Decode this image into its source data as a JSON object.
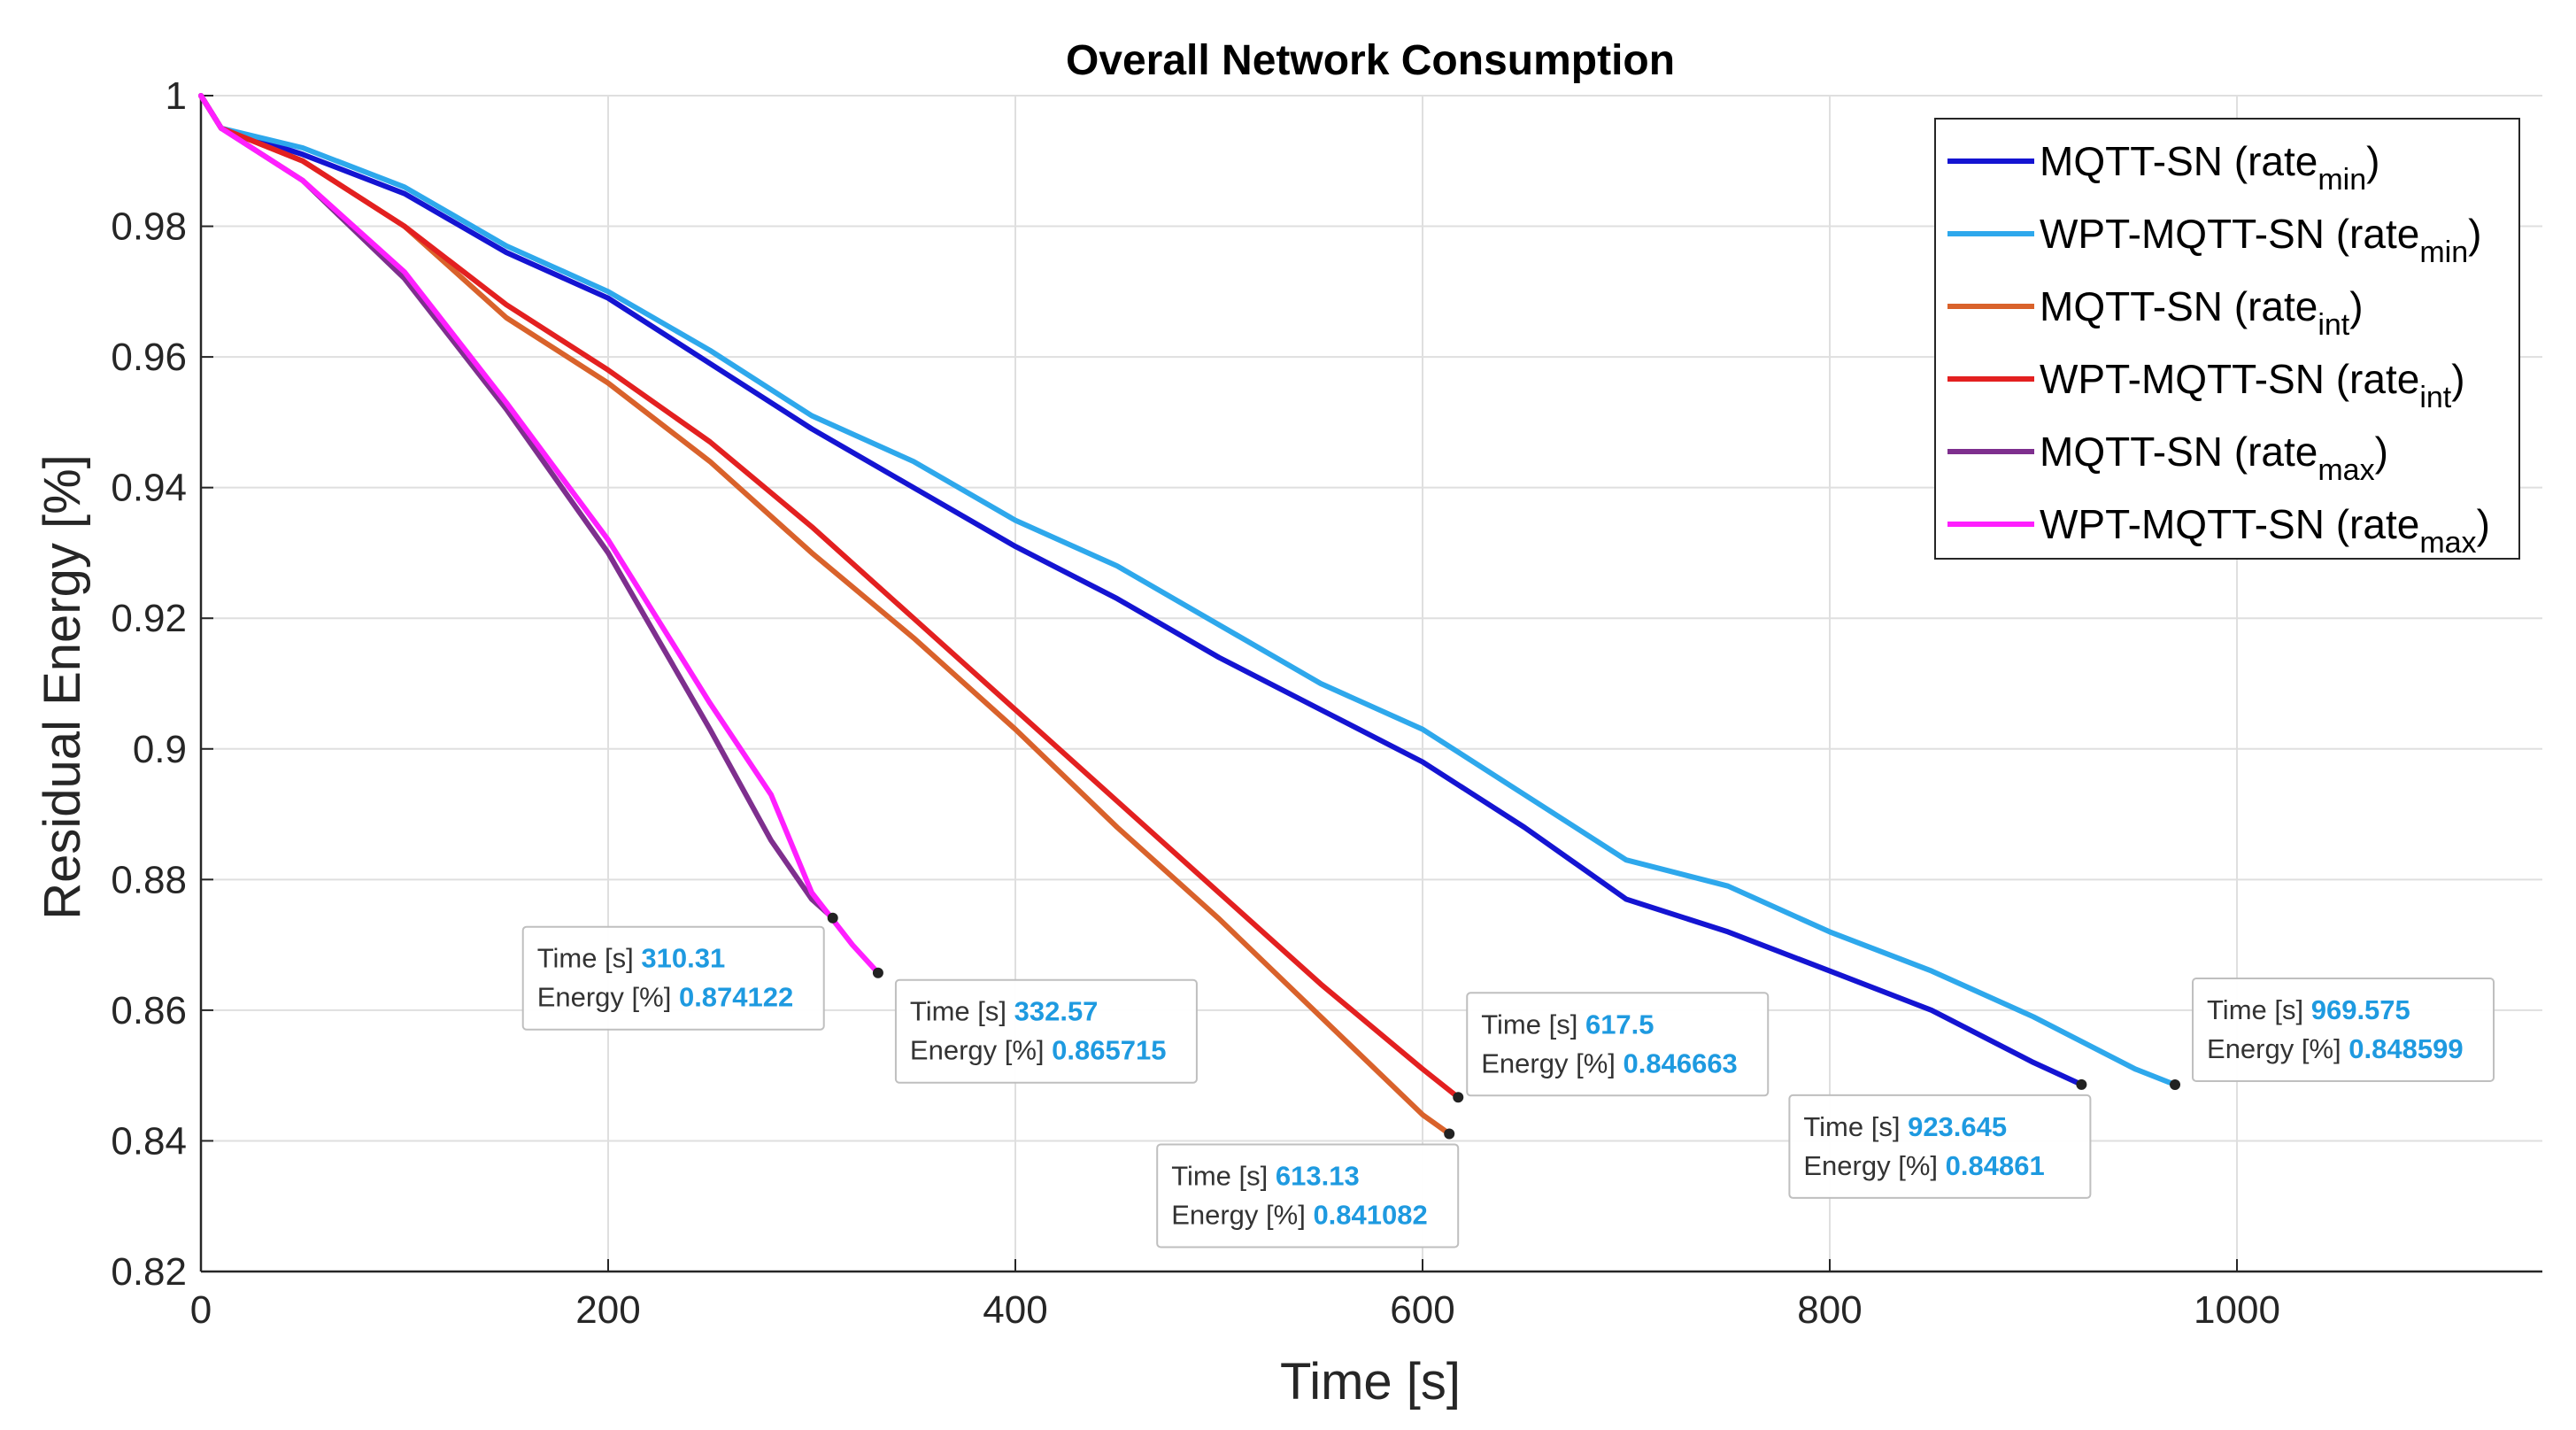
{
  "chart_data": {
    "type": "line",
    "title": "Overall Network Consumption",
    "xlabel": "Time [s]",
    "ylabel": "Residual Energy [%]",
    "xlim": [
      0,
      1150
    ],
    "ylim": [
      0.82,
      1.0
    ],
    "xticks": [
      0,
      200,
      400,
      600,
      800,
      1000
    ],
    "yticks": [
      0.82,
      0.84,
      0.86,
      0.88,
      0.9,
      0.92,
      0.94,
      0.96,
      0.98,
      1
    ],
    "grid": true,
    "legend_position": "top-right",
    "series": [
      {
        "name": "MQTT-SN (rate",
        "sub": "min",
        "color": "#1414d2",
        "points": [
          [
            0,
            1.0
          ],
          [
            10,
            0.995
          ],
          [
            50,
            0.991
          ],
          [
            100,
            0.985
          ],
          [
            150,
            0.976
          ],
          [
            200,
            0.969
          ],
          [
            250,
            0.959
          ],
          [
            300,
            0.949
          ],
          [
            350,
            0.94
          ],
          [
            400,
            0.931
          ],
          [
            450,
            0.923
          ],
          [
            500,
            0.914
          ],
          [
            550,
            0.906
          ],
          [
            600,
            0.898
          ],
          [
            650,
            0.888
          ],
          [
            700,
            0.877
          ],
          [
            750,
            0.872
          ],
          [
            800,
            0.866
          ],
          [
            850,
            0.86
          ],
          [
            900,
            0.852
          ],
          [
            923.645,
            0.84861
          ]
        ]
      },
      {
        "name": "WPT-MQTT-SN (rate",
        "sub": "min",
        "color": "#2ea8ec",
        "points": [
          [
            0,
            1.0
          ],
          [
            10,
            0.995
          ],
          [
            50,
            0.992
          ],
          [
            100,
            0.986
          ],
          [
            150,
            0.977
          ],
          [
            200,
            0.97
          ],
          [
            250,
            0.961
          ],
          [
            300,
            0.951
          ],
          [
            350,
            0.944
          ],
          [
            400,
            0.935
          ],
          [
            450,
            0.928
          ],
          [
            500,
            0.919
          ],
          [
            550,
            0.91
          ],
          [
            600,
            0.903
          ],
          [
            650,
            0.893
          ],
          [
            700,
            0.883
          ],
          [
            750,
            0.879
          ],
          [
            800,
            0.872
          ],
          [
            850,
            0.866
          ],
          [
            900,
            0.859
          ],
          [
            950,
            0.851
          ],
          [
            969.575,
            0.848599
          ]
        ]
      },
      {
        "name": "MQTT-SN (rate",
        "sub": "int",
        "color": "#d9622b",
        "points": [
          [
            0,
            1.0
          ],
          [
            10,
            0.995
          ],
          [
            50,
            0.99
          ],
          [
            100,
            0.98
          ],
          [
            150,
            0.966
          ],
          [
            200,
            0.956
          ],
          [
            250,
            0.944
          ],
          [
            300,
            0.93
          ],
          [
            350,
            0.917
          ],
          [
            400,
            0.903
          ],
          [
            450,
            0.888
          ],
          [
            500,
            0.874
          ],
          [
            550,
            0.859
          ],
          [
            600,
            0.844
          ],
          [
            613.13,
            0.841082
          ]
        ]
      },
      {
        "name": "WPT-MQTT-SN (rate",
        "sub": "int",
        "color": "#e32020",
        "points": [
          [
            0,
            1.0
          ],
          [
            10,
            0.995
          ],
          [
            50,
            0.99
          ],
          [
            100,
            0.98
          ],
          [
            150,
            0.968
          ],
          [
            200,
            0.958
          ],
          [
            250,
            0.947
          ],
          [
            300,
            0.934
          ],
          [
            350,
            0.92
          ],
          [
            400,
            0.906
          ],
          [
            450,
            0.892
          ],
          [
            500,
            0.878
          ],
          [
            550,
            0.864
          ],
          [
            600,
            0.851
          ],
          [
            617.5,
            0.846663
          ]
        ]
      },
      {
        "name": "MQTT-SN (rate",
        "sub": "max",
        "color": "#7e2f8e",
        "points": [
          [
            0,
            1.0
          ],
          [
            10,
            0.995
          ],
          [
            50,
            0.987
          ],
          [
            100,
            0.972
          ],
          [
            150,
            0.952
          ],
          [
            200,
            0.93
          ],
          [
            250,
            0.903
          ],
          [
            280,
            0.886
          ],
          [
            300,
            0.877
          ],
          [
            310.31,
            0.874122
          ]
        ]
      },
      {
        "name": "WPT-MQTT-SN (rate",
        "sub": "max",
        "color": "#ff1fff",
        "points": [
          [
            0,
            1.0
          ],
          [
            10,
            0.995
          ],
          [
            50,
            0.987
          ],
          [
            100,
            0.973
          ],
          [
            150,
            0.953
          ],
          [
            200,
            0.932
          ],
          [
            250,
            0.907
          ],
          [
            280,
            0.893
          ],
          [
            300,
            0.878
          ],
          [
            320,
            0.87
          ],
          [
            332.57,
            0.865715
          ]
        ]
      }
    ],
    "annotations": [
      {
        "time": "310.31",
        "energy": "0.874122",
        "x": 310.31,
        "y": 0.874122
      },
      {
        "time": "332.57",
        "energy": "0.865715",
        "x": 332.57,
        "y": 0.865715
      },
      {
        "time": "613.13",
        "energy": "0.841082",
        "x": 613.13,
        "y": 0.841082
      },
      {
        "time": "617.5",
        "energy": "0.846663",
        "x": 617.5,
        "y": 0.846663
      },
      {
        "time": "923.645",
        "energy": "0.84861",
        "x": 923.645,
        "y": 0.84861
      },
      {
        "time": "969.575",
        "energy": "0.848599",
        "x": 969.575,
        "y": 0.848599
      }
    ],
    "annotation_keys": {
      "time": "Time [s]",
      "energy": "Energy [%]"
    }
  }
}
